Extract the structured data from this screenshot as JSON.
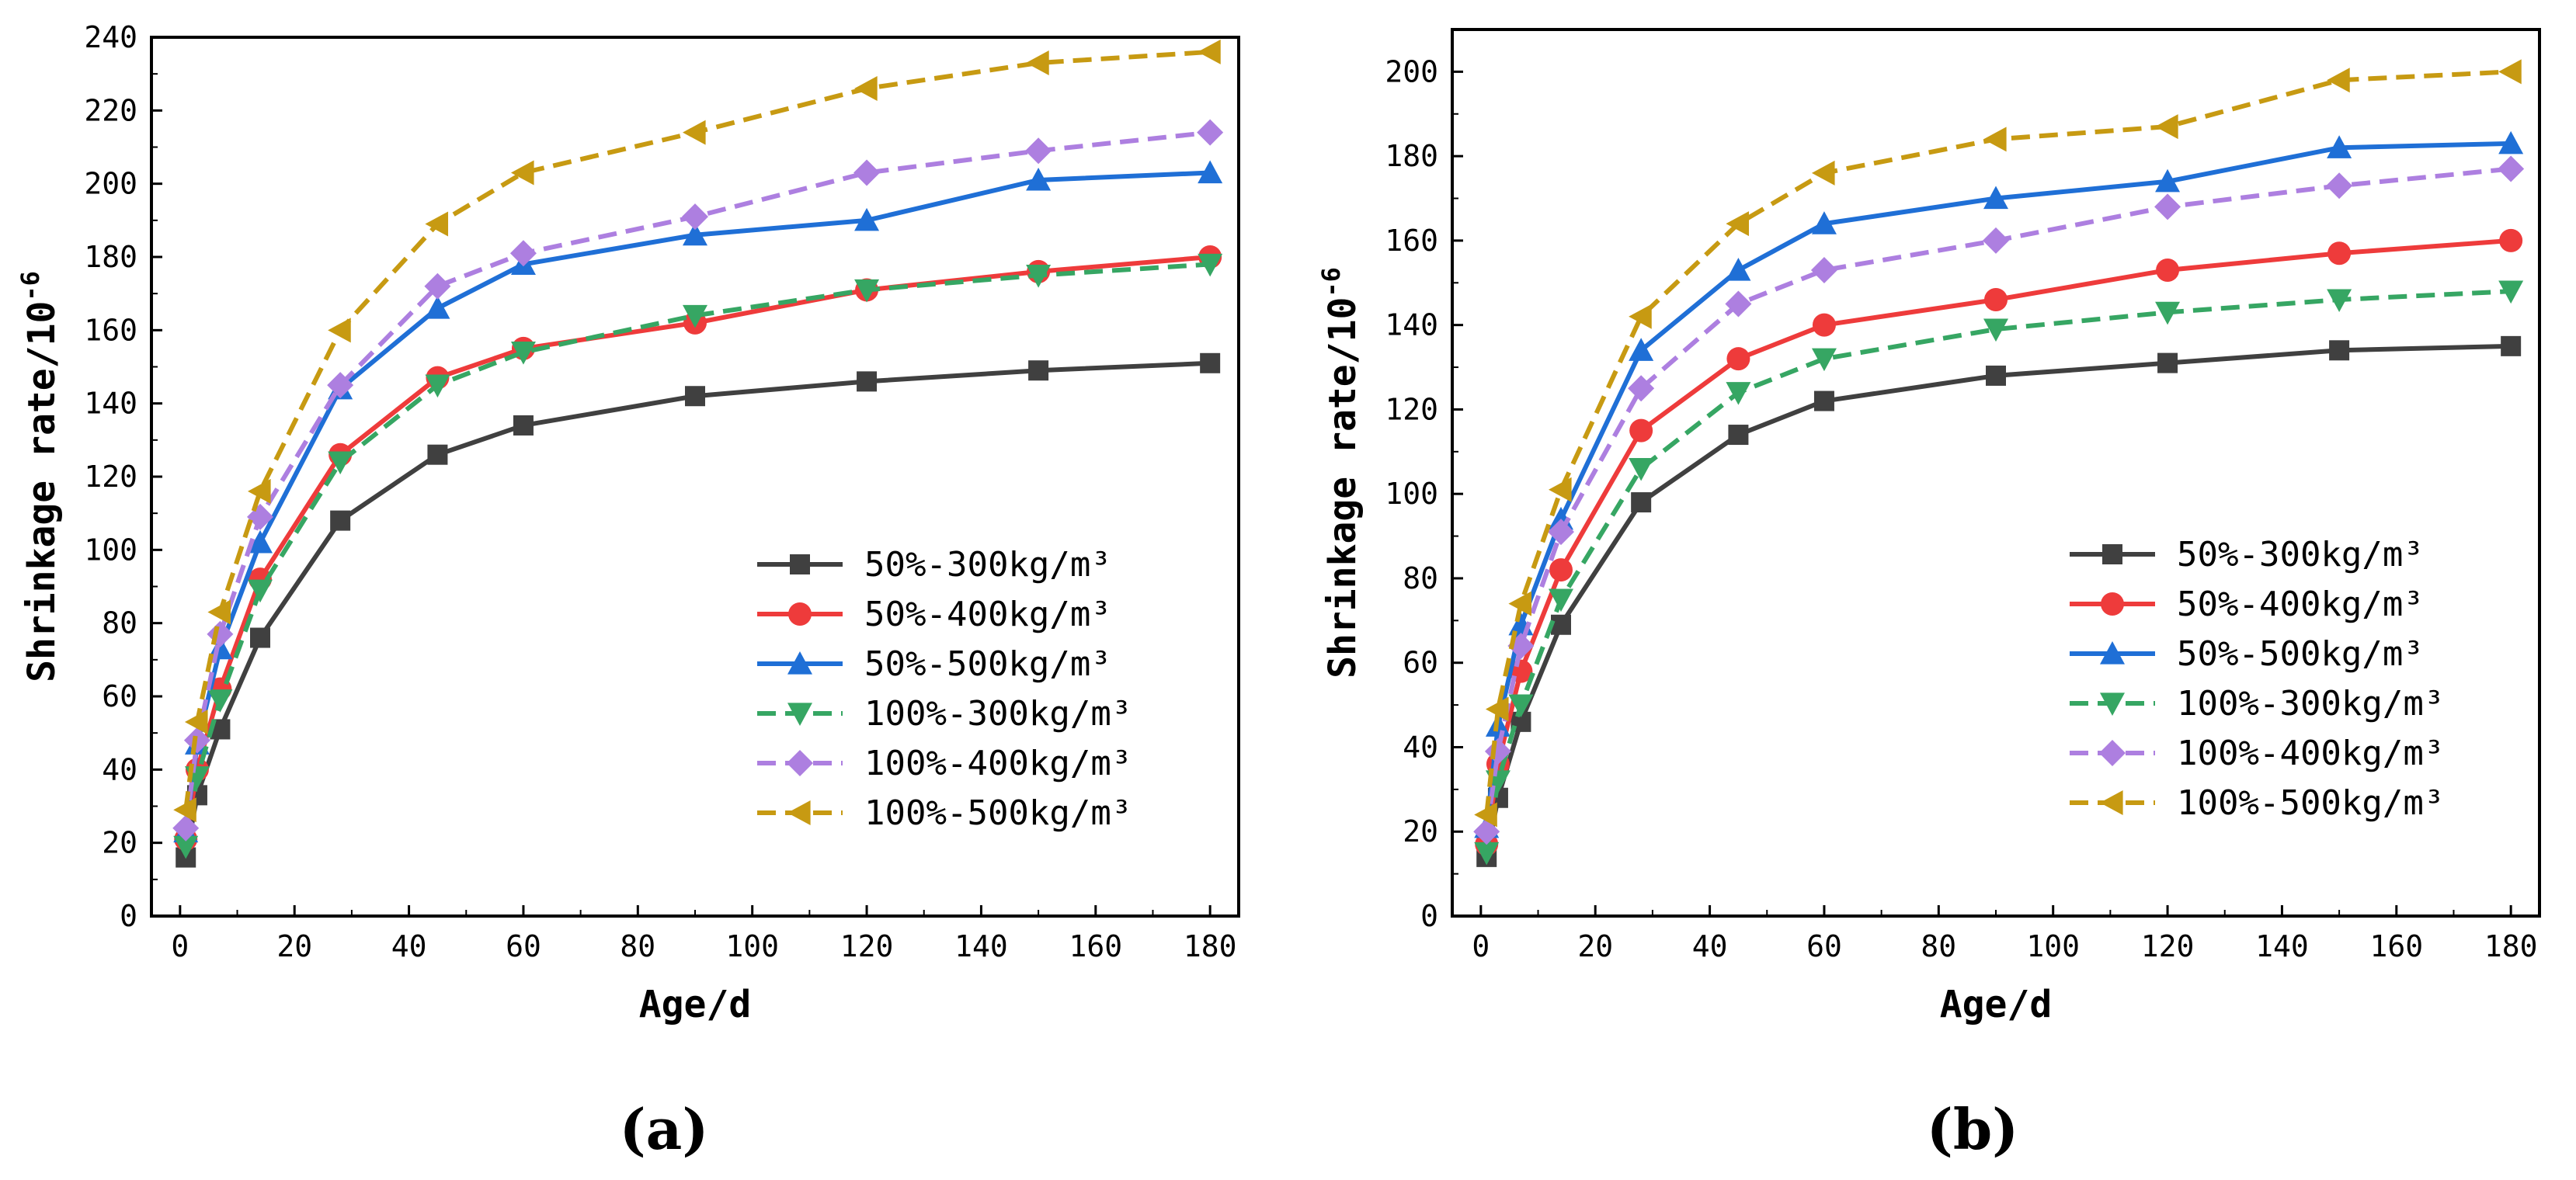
{
  "colors": {
    "50%-300": "#404040",
    "50%-400": "#ee3b3b",
    "50%-500": "#1f6fd6",
    "100%-300": "#36a663",
    "100%-400": "#ad7fe0",
    "100%-500": "#c79a12"
  },
  "chart_data": [
    {
      "type": "line",
      "panel_label": "(a)",
      "xlabel": "Age/d",
      "ylabel": "Shrinkage rate/10",
      "ylabel_sup": "-6",
      "xlim": [
        -5,
        185
      ],
      "ylim": [
        0,
        240
      ],
      "xticks": [
        0,
        20,
        40,
        60,
        80,
        100,
        120,
        140,
        160,
        180
      ],
      "yticks": [
        0,
        20,
        40,
        60,
        80,
        100,
        120,
        140,
        160,
        180,
        200,
        220,
        240
      ],
      "x": [
        1,
        3,
        7,
        14,
        28,
        45,
        60,
        90,
        120,
        150,
        180
      ],
      "series": [
        {
          "name": "50%-300kg/m³",
          "marker": "square",
          "dash": false,
          "color_key": "50%-300",
          "values": [
            16,
            33,
            51,
            76,
            108,
            126,
            134,
            142,
            146,
            149,
            151
          ]
        },
        {
          "name": "50%-400kg/m³",
          "marker": "circle",
          "dash": false,
          "color_key": "50%-400",
          "values": [
            21,
            40,
            62,
            92,
            126,
            147,
            155,
            162,
            171,
            176,
            180
          ]
        },
        {
          "name": "50%-500kg/m³",
          "marker": "triangle-up",
          "dash": false,
          "color_key": "50%-500",
          "values": [
            23,
            47,
            73,
            102,
            144,
            166,
            178,
            186,
            190,
            201,
            203
          ]
        },
        {
          "name": "100%-300kg/m³",
          "marker": "triangle-down",
          "dash": true,
          "color_key": "100%-300",
          "values": [
            19,
            38,
            59,
            89,
            124,
            145,
            154,
            164,
            171,
            175,
            178
          ]
        },
        {
          "name": "100%-400kg/m³",
          "marker": "diamond",
          "dash": true,
          "color_key": "100%-400",
          "values": [
            24,
            48,
            77,
            109,
            145,
            172,
            181,
            191,
            203,
            209,
            214
          ]
        },
        {
          "name": "100%-500kg/m³",
          "marker": "triangle-left",
          "dash": true,
          "color_key": "100%-500",
          "values": [
            29,
            53,
            83,
            116,
            160,
            189,
            203,
            214,
            226,
            233,
            236
          ]
        }
      ]
    },
    {
      "type": "line",
      "panel_label": "(b)",
      "xlabel": "Age/d",
      "ylabel": "Shrinkage rate/10",
      "ylabel_sup": "-6",
      "xlim": [
        -5,
        185
      ],
      "ylim": [
        0,
        210
      ],
      "xticks": [
        0,
        20,
        40,
        60,
        80,
        100,
        120,
        140,
        160,
        180
      ],
      "yticks": [
        0,
        20,
        40,
        60,
        80,
        100,
        120,
        140,
        160,
        180,
        200
      ],
      "x": [
        1,
        3,
        7,
        14,
        28,
        45,
        60,
        90,
        120,
        150,
        180
      ],
      "series": [
        {
          "name": "50%-300kg/m³",
          "marker": "square",
          "dash": false,
          "color_key": "50%-300",
          "values": [
            14,
            28,
            46,
            69,
            98,
            114,
            122,
            128,
            131,
            134,
            135
          ]
        },
        {
          "name": "50%-400kg/m³",
          "marker": "circle",
          "dash": false,
          "color_key": "50%-400",
          "values": [
            17,
            36,
            58,
            82,
            115,
            132,
            140,
            146,
            153,
            157,
            160
          ]
        },
        {
          "name": "50%-500kg/m³",
          "marker": "triangle-up",
          "dash": false,
          "color_key": "50%-500",
          "values": [
            21,
            45,
            69,
            94,
            134,
            153,
            164,
            170,
            174,
            182,
            183
          ]
        },
        {
          "name": "100%-300kg/m³",
          "marker": "triangle-down",
          "dash": true,
          "color_key": "100%-300",
          "values": [
            15,
            32,
            50,
            75,
            106,
            124,
            132,
            139,
            143,
            146,
            148
          ]
        },
        {
          "name": "100%-400kg/m³",
          "marker": "diamond",
          "dash": true,
          "color_key": "100%-400",
          "values": [
            20,
            39,
            64,
            91,
            125,
            145,
            153,
            160,
            168,
            173,
            177
          ]
        },
        {
          "name": "100%-500kg/m³",
          "marker": "triangle-left",
          "dash": true,
          "color_key": "100%-500",
          "values": [
            24,
            49,
            74,
            101,
            142,
            164,
            176,
            184,
            187,
            198,
            200
          ]
        }
      ]
    }
  ]
}
